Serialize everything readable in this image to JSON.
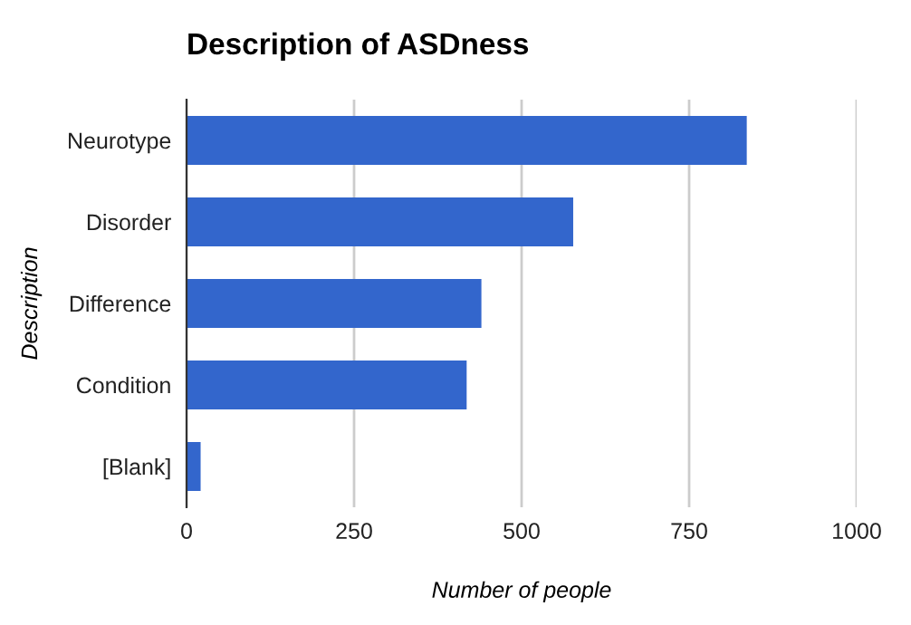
{
  "chart_data": {
    "type": "bar",
    "orientation": "horizontal",
    "title": "Description of ASDness",
    "xlabel": "Number of people",
    "ylabel": "Description",
    "categories": [
      "Neurotype",
      "Disorder",
      "Difference",
      "Condition",
      "[Blank]"
    ],
    "values": [
      836,
      577,
      440,
      418,
      21
    ],
    "color": "#3366cc",
    "xlim": [
      0,
      1000
    ],
    "xticks": [
      0,
      250,
      500,
      750,
      1000
    ],
    "grid": "x",
    "legend": false
  }
}
